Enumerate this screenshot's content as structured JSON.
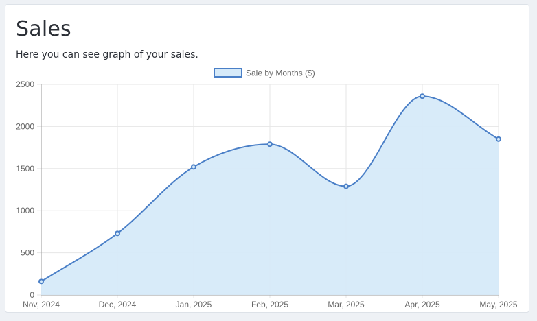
{
  "card": {
    "title": "Sales",
    "subtitle": "Here you can see graph of your sales."
  },
  "colors": {
    "line": "#4a7fc7",
    "fill": "#d6eaf9",
    "grid": "#e6e6e6",
    "axis": "#999999"
  },
  "chart_data": {
    "type": "area",
    "categories": [
      "Nov, 2024",
      "Dec, 2024",
      "Jan, 2025",
      "Feb, 2025",
      "Mar, 2025",
      "Apr, 2025",
      "May, 2025"
    ],
    "series": [
      {
        "name": "Sale by Months ($)",
        "values": [
          160,
          730,
          1520,
          1790,
          1290,
          2360,
          1850
        ]
      }
    ],
    "ylim": [
      0,
      2500
    ],
    "yticks": [
      0,
      500,
      1000,
      1500,
      2000,
      2500
    ],
    "legend_position": "top-center",
    "grid": true,
    "smooth": true
  }
}
